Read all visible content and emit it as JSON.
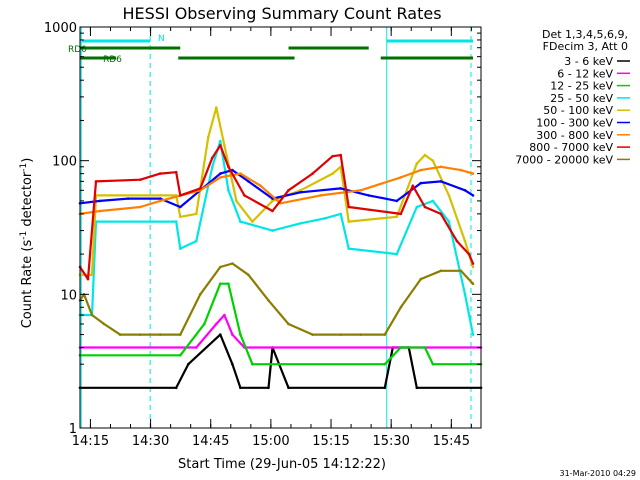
{
  "chart_data": {
    "type": "line",
    "title": "HESSI Observing Summary Count Rates",
    "xlabel": "Start Time (29-Jun-05 14:12:22)",
    "ylabel_main": "Count Rate (s",
    "ylabel_sup1": "-1",
    "ylabel_mid": " detector",
    "ylabel_sup2": "-1",
    "ylabel_end": ")",
    "y_scale": "log",
    "ylim": [
      1,
      1000
    ],
    "xlim_minutes": [
      0,
      100
    ],
    "x_ticks": [
      {
        "t": 2.6,
        "label": "14:15"
      },
      {
        "t": 17.6,
        "label": "14:30"
      },
      {
        "t": 32.6,
        "label": "14:45"
      },
      {
        "t": 47.6,
        "label": "15:00"
      },
      {
        "t": 62.6,
        "label": "15:15"
      },
      {
        "t": 77.6,
        "label": "15:30"
      },
      {
        "t": 92.6,
        "label": "15:45"
      }
    ],
    "y_ticks": [
      {
        "v": 1,
        "label": "1"
      },
      {
        "v": 10,
        "label": "10"
      },
      {
        "v": 100,
        "label": "100"
      },
      {
        "v": 1000,
        "label": "1000"
      }
    ],
    "legend_header": [
      "Det 1,3,4,5,6,9,",
      "FDecim 3, Att 0"
    ],
    "legend_placement": "right",
    "series": [
      {
        "name": "3 - 6 keV",
        "color": "#000000",
        "points": [
          [
            0,
            2
          ],
          [
            24,
            2
          ],
          [
            27,
            3
          ],
          [
            35,
            5
          ],
          [
            38,
            3
          ],
          [
            40,
            2
          ],
          [
            47,
            2
          ],
          [
            48,
            4
          ],
          [
            52,
            2
          ],
          [
            76,
            2
          ],
          [
            78,
            4
          ],
          [
            82,
            4
          ],
          [
            84,
            2
          ],
          [
            100,
            2
          ]
        ]
      },
      {
        "name": "6 - 12 keV",
        "color": "#ff00ff",
        "points": [
          [
            0,
            4
          ],
          [
            29,
            4
          ],
          [
            34,
            6
          ],
          [
            36,
            7
          ],
          [
            38,
            5
          ],
          [
            41,
            4
          ],
          [
            100,
            4
          ]
        ]
      },
      {
        "name": "12 - 25 keV",
        "color": "#00d000",
        "points": [
          [
            0,
            3.5
          ],
          [
            25,
            3.5
          ],
          [
            31,
            6
          ],
          [
            35,
            12
          ],
          [
            37,
            12
          ],
          [
            40,
            5
          ],
          [
            43,
            3
          ],
          [
            76,
            3
          ],
          [
            80,
            4
          ],
          [
            86,
            4
          ],
          [
            88,
            3
          ],
          [
            100,
            3
          ]
        ]
      },
      {
        "name": "25 - 50 keV",
        "color": "#00e6e6",
        "points": [
          [
            0,
            7
          ],
          [
            3,
            7
          ],
          [
            4,
            35
          ],
          [
            24,
            35
          ],
          [
            25,
            22
          ],
          [
            29,
            25
          ],
          [
            33,
            90
          ],
          [
            35,
            140
          ],
          [
            37,
            60
          ],
          [
            40,
            35
          ],
          [
            48,
            30
          ],
          [
            55,
            34
          ],
          [
            61,
            37
          ],
          [
            65,
            40
          ],
          [
            67,
            22
          ],
          [
            79,
            20
          ],
          [
            84,
            45
          ],
          [
            88,
            50
          ],
          [
            92,
            35
          ],
          [
            96,
            10
          ],
          [
            98,
            5
          ]
        ]
      },
      {
        "name": "50 - 100 keV",
        "color": "#d4c000",
        "points": [
          [
            0,
            14
          ],
          [
            3,
            14
          ],
          [
            4,
            55
          ],
          [
            24,
            55
          ],
          [
            25,
            38
          ],
          [
            29,
            40
          ],
          [
            32,
            150
          ],
          [
            34,
            250
          ],
          [
            36,
            130
          ],
          [
            39,
            50
          ],
          [
            43,
            35
          ],
          [
            48,
            50
          ],
          [
            55,
            60
          ],
          [
            63,
            80
          ],
          [
            65,
            90
          ],
          [
            67,
            35
          ],
          [
            79,
            38
          ],
          [
            84,
            95
          ],
          [
            86,
            110
          ],
          [
            88,
            100
          ],
          [
            92,
            55
          ],
          [
            96,
            25
          ],
          [
            98,
            16
          ]
        ]
      },
      {
        "name": "100 - 300 keV",
        "color": "#0000ff",
        "points": [
          [
            0,
            48
          ],
          [
            5,
            50
          ],
          [
            12,
            52
          ],
          [
            20,
            52
          ],
          [
            25,
            45
          ],
          [
            30,
            60
          ],
          [
            35,
            80
          ],
          [
            38,
            85
          ],
          [
            42,
            70
          ],
          [
            48,
            52
          ],
          [
            55,
            58
          ],
          [
            65,
            62
          ],
          [
            72,
            55
          ],
          [
            79,
            50
          ],
          [
            85,
            68
          ],
          [
            90,
            70
          ],
          [
            96,
            60
          ],
          [
            98,
            55
          ]
        ]
      },
      {
        "name": "300 - 800 keV",
        "color": "#ff8000",
        "points": [
          [
            0,
            40
          ],
          [
            5,
            42
          ],
          [
            15,
            45
          ],
          [
            20,
            50
          ],
          [
            30,
            60
          ],
          [
            35,
            75
          ],
          [
            40,
            80
          ],
          [
            45,
            65
          ],
          [
            50,
            48
          ],
          [
            60,
            55
          ],
          [
            70,
            60
          ],
          [
            80,
            75
          ],
          [
            85,
            85
          ],
          [
            90,
            90
          ],
          [
            95,
            85
          ],
          [
            98,
            80
          ]
        ]
      },
      {
        "name": "800 - 7000 keV",
        "color": "#e00000",
        "points": [
          [
            0,
            16
          ],
          [
            2,
            13
          ],
          [
            4,
            70
          ],
          [
            15,
            72
          ],
          [
            20,
            80
          ],
          [
            24,
            82
          ],
          [
            25,
            55
          ],
          [
            30,
            62
          ],
          [
            33,
            105
          ],
          [
            35,
            130
          ],
          [
            37,
            90
          ],
          [
            41,
            55
          ],
          [
            48,
            42
          ],
          [
            52,
            60
          ],
          [
            58,
            80
          ],
          [
            63,
            108
          ],
          [
            65,
            110
          ],
          [
            67,
            45
          ],
          [
            80,
            40
          ],
          [
            83,
            65
          ],
          [
            86,
            45
          ],
          [
            90,
            40
          ],
          [
            94,
            25
          ],
          [
            97,
            20
          ],
          [
            98,
            17
          ]
        ]
      },
      {
        "name": "7000 - 20000 keV",
        "color": "#8b7d00",
        "points": [
          [
            0,
            9
          ],
          [
            1,
            10
          ],
          [
            3,
            7
          ],
          [
            6,
            6
          ],
          [
            10,
            5
          ],
          [
            15,
            5
          ],
          [
            20,
            5
          ],
          [
            25,
            5
          ],
          [
            30,
            10
          ],
          [
            35,
            16
          ],
          [
            38,
            17
          ],
          [
            42,
            14
          ],
          [
            47,
            9
          ],
          [
            52,
            6
          ],
          [
            58,
            5
          ],
          [
            65,
            5
          ],
          [
            70,
            5
          ],
          [
            76,
            5
          ],
          [
            80,
            8
          ],
          [
            85,
            13
          ],
          [
            90,
            15
          ],
          [
            95,
            15
          ],
          [
            98,
            12
          ]
        ]
      }
    ],
    "flags": [
      {
        "label": "N",
        "color": "#00e6e6",
        "segments": [
          [
            0.5,
            17.5
          ],
          [
            76.5,
            98
          ]
        ]
      },
      {
        "label": "RD0",
        "color": "#007000",
        "segments": [
          [
            0,
            25
          ],
          [
            52,
            72
          ]
        ]
      },
      {
        "label": "RD6",
        "color": "#007000",
        "segments": [
          [
            0,
            9
          ],
          [
            24.5,
            53.5
          ],
          [
            75,
            98
          ]
        ]
      }
    ],
    "dashed_verticals": [
      17.5,
      97.5
    ],
    "solid_verticals": [
      0.3,
      76.5
    ],
    "grid": false
  },
  "footer_date": "31-Mar-2010 04:29"
}
